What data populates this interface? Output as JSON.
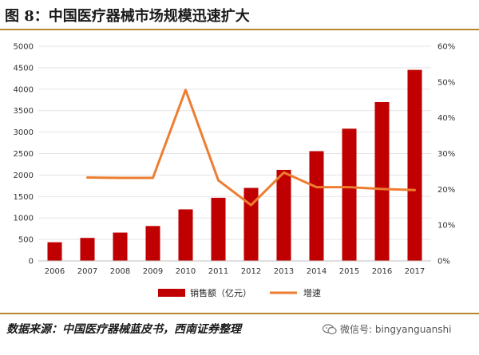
{
  "figure": {
    "title": "图 8：中国医疗器械市场规模迅速扩大",
    "source": "数据来源：中国医疗器械蓝皮书，西南证券整理",
    "watermark": "微信号: bingyanguanshi"
  },
  "chart_data": {
    "type": "bar",
    "categories": [
      "2006",
      "2007",
      "2008",
      "2009",
      "2010",
      "2011",
      "2012",
      "2013",
      "2014",
      "2015",
      "2016",
      "2017"
    ],
    "series": [
      {
        "name": "销售额（亿元）",
        "type": "bar",
        "axis": "left",
        "color": "#c00000",
        "values": [
          434,
          535,
          659,
          812,
          1200,
          1470,
          1700,
          2120,
          2556,
          3080,
          3700,
          4450
        ]
      },
      {
        "name": "增速",
        "type": "line",
        "axis": "right",
        "color": "#ed7d31",
        "values": [
          null,
          23.3,
          23.2,
          23.2,
          47.8,
          22.5,
          15.6,
          24.7,
          20.6,
          20.6,
          20.1,
          19.8
        ]
      }
    ],
    "y_left": {
      "min": 0,
      "max": 5000,
      "ticks": [
        "0",
        "500",
        "1000",
        "1500",
        "2000",
        "2500",
        "3000",
        "3500",
        "4000",
        "4500",
        "5000"
      ]
    },
    "y_right": {
      "min": 0,
      "max": 60,
      "ticks": [
        "0%",
        "10%",
        "20%",
        "30%",
        "40%",
        "50%",
        "60%"
      ]
    },
    "legend": [
      "销售额（亿元）",
      "增速"
    ],
    "legend_position": "bottom"
  }
}
